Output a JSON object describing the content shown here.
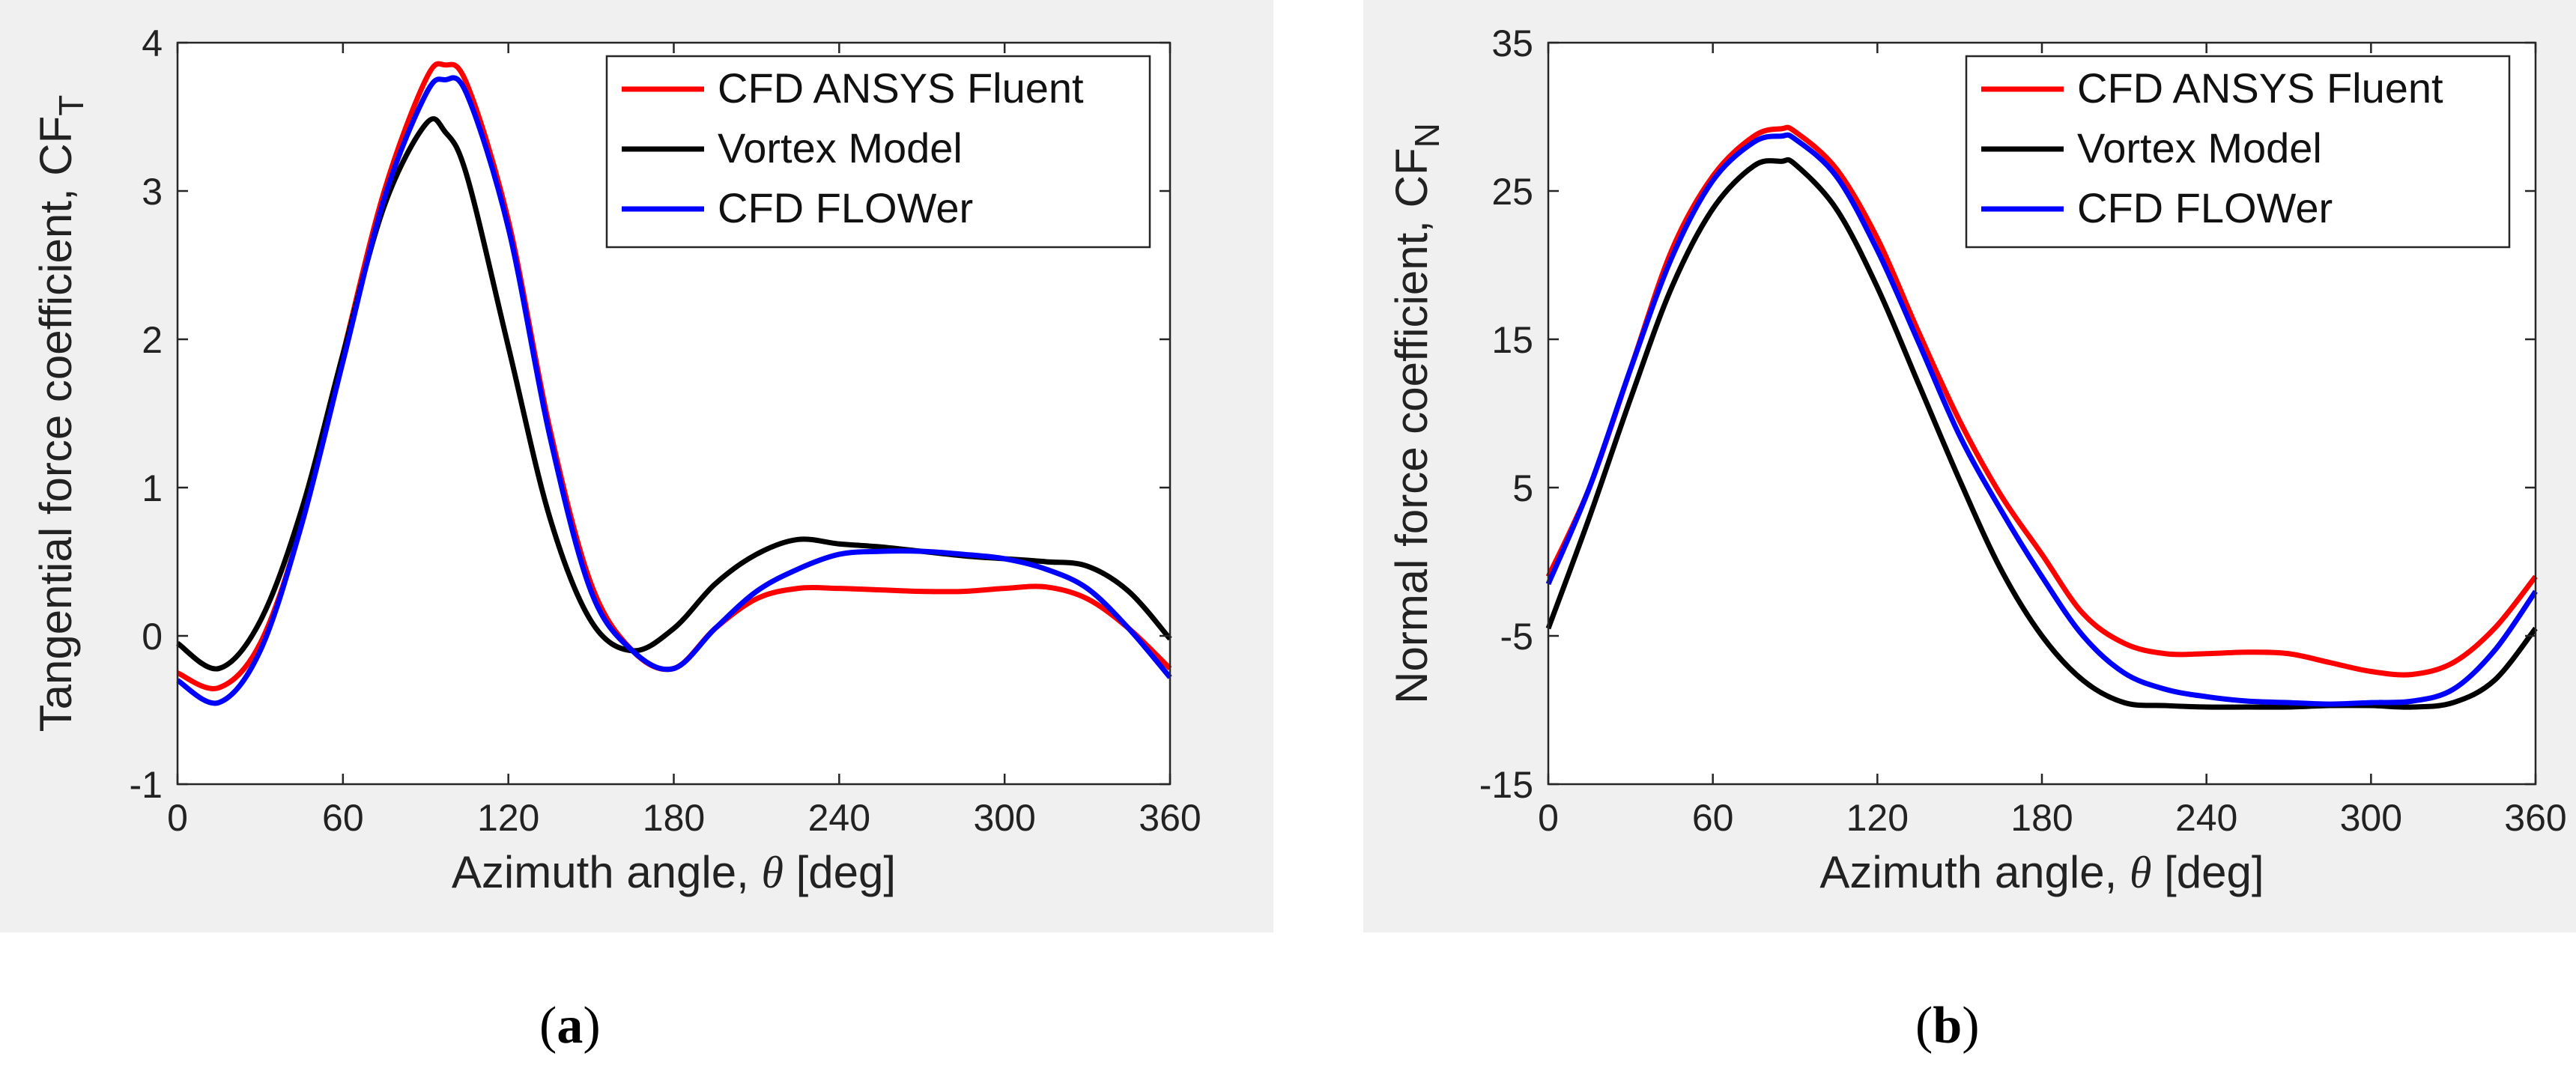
{
  "chart_data": [
    {
      "type": "line",
      "panel_label": "a",
      "xlabel": "Azimuth angle, θ [deg]",
      "ylabel_main": "Tangential force coefficient, CF",
      "ylabel_sub": "T",
      "xlim": [
        0,
        360
      ],
      "ylim": [
        -1,
        4
      ],
      "xticks": [
        0,
        60,
        120,
        180,
        240,
        300,
        360
      ],
      "yticks": [
        -1,
        0,
        1,
        2,
        3,
        4
      ],
      "legend_position": "top-right",
      "x": [
        0,
        15,
        30,
        45,
        60,
        75,
        90,
        97,
        105,
        120,
        135,
        150,
        165,
        180,
        195,
        210,
        225,
        240,
        255,
        270,
        285,
        300,
        315,
        330,
        345,
        360
      ],
      "series": [
        {
          "name": "CFD ANSYS Fluent",
          "color": "#ff0000",
          "values": [
            -0.25,
            -0.35,
            -0.05,
            0.75,
            1.9,
            3.0,
            3.75,
            3.85,
            3.72,
            2.8,
            1.4,
            0.35,
            -0.1,
            -0.22,
            0.05,
            0.25,
            0.32,
            0.32,
            0.31,
            0.3,
            0.3,
            0.32,
            0.33,
            0.25,
            0.05,
            -0.22
          ]
        },
        {
          "name": "Vortex Model",
          "color": "#000000",
          "values": [
            -0.05,
            -0.22,
            0.1,
            0.85,
            1.9,
            2.9,
            3.45,
            3.4,
            3.1,
            1.95,
            0.8,
            0.1,
            -0.1,
            0.05,
            0.35,
            0.55,
            0.65,
            0.62,
            0.6,
            0.57,
            0.54,
            0.52,
            0.5,
            0.47,
            0.3,
            -0.02
          ]
        },
        {
          "name": "CFD FLOWer",
          "color": "#0000ff",
          "values": [
            -0.3,
            -0.45,
            -0.1,
            0.75,
            1.85,
            2.95,
            3.65,
            3.75,
            3.65,
            2.75,
            1.35,
            0.3,
            -0.1,
            -0.22,
            0.05,
            0.3,
            0.45,
            0.55,
            0.57,
            0.57,
            0.55,
            0.52,
            0.45,
            0.32,
            0.05,
            -0.28
          ]
        }
      ]
    },
    {
      "type": "line",
      "panel_label": "b",
      "xlabel": "Azimuth angle, θ [deg]",
      "ylabel_main": "Normal force coefficient, CF",
      "ylabel_sub": "N",
      "xlim": [
        0,
        360
      ],
      "ylim": [
        -15,
        35
      ],
      "xticks": [
        0,
        60,
        120,
        180,
        240,
        300,
        360
      ],
      "yticks": [
        -15,
        -5,
        5,
        15,
        25,
        35
      ],
      "legend_position": "top-right",
      "x": [
        0,
        15,
        30,
        45,
        60,
        75,
        85,
        90,
        105,
        120,
        135,
        150,
        165,
        180,
        195,
        210,
        225,
        240,
        255,
        270,
        285,
        300,
        315,
        330,
        345,
        360
      ],
      "series": [
        {
          "name": "CFD ANSYS Fluent",
          "color": "#ff0000",
          "values": [
            -1,
            5,
            13,
            21,
            26,
            28.7,
            29.2,
            29,
            26.5,
            21.8,
            15.5,
            9.5,
            4.5,
            0.5,
            -3.5,
            -5.5,
            -6.2,
            -6.2,
            -6.1,
            -6.2,
            -6.8,
            -7.4,
            -7.6,
            -6.8,
            -4.5,
            -1
          ]
        },
        {
          "name": "Vortex Model",
          "color": "#000000",
          "values": [
            -4.5,
            3,
            11,
            18.5,
            23.8,
            26.7,
            27,
            26.8,
            23.8,
            18.5,
            12,
            5.5,
            -0.5,
            -5,
            -8,
            -9.5,
            -9.7,
            -9.8,
            -9.8,
            -9.8,
            -9.7,
            -9.7,
            -9.8,
            -9.5,
            -8,
            -4.5
          ]
        },
        {
          "name": "CFD FLOWer",
          "color": "#0000ff",
          "values": [
            -1.5,
            5,
            13,
            20.5,
            25.7,
            28.3,
            28.7,
            28.5,
            26,
            21,
            14.8,
            8.5,
            3.5,
            -1,
            -5,
            -7.5,
            -8.6,
            -9.1,
            -9.4,
            -9.5,
            -9.6,
            -9.5,
            -9.4,
            -8.6,
            -6,
            -2
          ]
        }
      ]
    }
  ]
}
